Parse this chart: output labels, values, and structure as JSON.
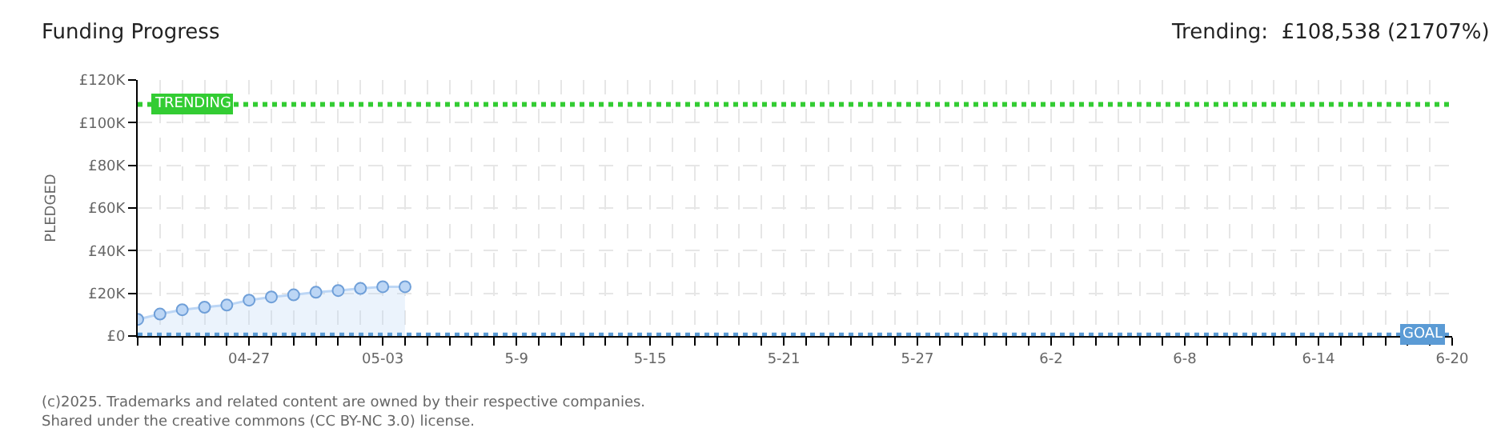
{
  "chart_data": {
    "type": "area",
    "title": "Funding Progress",
    "subtitle": "Trending:  £108,538 (21707%)",
    "ylabel": "PLEDGED",
    "x": [
      "2025-04-22",
      "2025-04-23",
      "2025-04-24",
      "2025-04-25",
      "2025-04-26",
      "2025-04-27",
      "2025-04-28",
      "2025-04-29",
      "2025-04-30",
      "2025-05-01",
      "2025-05-02",
      "2025-05-03",
      "2025-05-04"
    ],
    "series": [
      {
        "color": "#bcd6f5",
        "values": [
          7800,
          10300,
          12300,
          13500,
          14500,
          16800,
          18300,
          19300,
          20500,
          21300,
          22300,
          23100,
          23100
        ]
      }
    ],
    "marker": "circle",
    "grid": true,
    "ylim": [
      0,
      120000
    ],
    "yticks": [
      {
        "value": 0,
        "label": "£0"
      },
      {
        "value": 20000,
        "label": "£20K"
      },
      {
        "value": 40000,
        "label": "£40K"
      },
      {
        "value": 60000,
        "label": "£60K"
      },
      {
        "value": 80000,
        "label": "£80K"
      },
      {
        "value": 100000,
        "label": "£100K"
      },
      {
        "value": 120000,
        "label": "£120K"
      }
    ],
    "xlim": [
      "2025-04-22",
      "2025-06-20"
    ],
    "xticks": [
      {
        "value": "2025-04-22",
        "label": null
      },
      {
        "value": "2025-04-23",
        "label": null
      },
      {
        "value": "2025-04-24",
        "label": null
      },
      {
        "value": "2025-04-25",
        "label": null
      },
      {
        "value": "2025-04-26",
        "label": null
      },
      {
        "value": "2025-04-27",
        "label": "04-27"
      },
      {
        "value": "2025-04-28",
        "label": null
      },
      {
        "value": "2025-04-29",
        "label": null
      },
      {
        "value": "2025-04-30",
        "label": null
      },
      {
        "value": "2025-05-01",
        "label": null
      },
      {
        "value": "2025-05-02",
        "label": null
      },
      {
        "value": "2025-05-03",
        "label": "05-03"
      },
      {
        "value": "2025-05-04",
        "label": null
      },
      {
        "value": "2025-05-05",
        "label": null
      },
      {
        "value": "2025-05-06",
        "label": null
      },
      {
        "value": "2025-05-07",
        "label": null
      },
      {
        "value": "2025-05-08",
        "label": null
      },
      {
        "value": "2025-05-09",
        "label": "5-9"
      },
      {
        "value": "2025-05-10",
        "label": null
      },
      {
        "value": "2025-05-11",
        "label": null
      },
      {
        "value": "2025-05-12",
        "label": null
      },
      {
        "value": "2025-05-13",
        "label": null
      },
      {
        "value": "2025-05-14",
        "label": null
      },
      {
        "value": "2025-05-15",
        "label": "5-15"
      },
      {
        "value": "2025-05-16",
        "label": null
      },
      {
        "value": "2025-05-17",
        "label": null
      },
      {
        "value": "2025-05-18",
        "label": null
      },
      {
        "value": "2025-05-19",
        "label": null
      },
      {
        "value": "2025-05-20",
        "label": null
      },
      {
        "value": "2025-05-21",
        "label": "5-21"
      },
      {
        "value": "2025-05-22",
        "label": null
      },
      {
        "value": "2025-05-23",
        "label": null
      },
      {
        "value": "2025-05-24",
        "label": null
      },
      {
        "value": "2025-05-25",
        "label": null
      },
      {
        "value": "2025-05-26",
        "label": null
      },
      {
        "value": "2025-05-27",
        "label": "5-27"
      },
      {
        "value": "2025-05-28",
        "label": null
      },
      {
        "value": "2025-05-29",
        "label": null
      },
      {
        "value": "2025-05-30",
        "label": null
      },
      {
        "value": "2025-05-31",
        "label": null
      },
      {
        "value": "2025-06-01",
        "label": null
      },
      {
        "value": "2025-06-02",
        "label": "6-2"
      },
      {
        "value": "2025-06-03",
        "label": null
      },
      {
        "value": "2025-06-04",
        "label": null
      },
      {
        "value": "2025-06-05",
        "label": null
      },
      {
        "value": "2025-06-06",
        "label": null
      },
      {
        "value": "2025-06-07",
        "label": null
      },
      {
        "value": "2025-06-08",
        "label": "6-8"
      },
      {
        "value": "2025-06-09",
        "label": null
      },
      {
        "value": "2025-06-10",
        "label": null
      },
      {
        "value": "2025-06-11",
        "label": null
      },
      {
        "value": "2025-06-12",
        "label": null
      },
      {
        "value": "2025-06-13",
        "label": null
      },
      {
        "value": "2025-06-14",
        "label": "6-14"
      },
      {
        "value": "2025-06-15",
        "label": null
      },
      {
        "value": "2025-06-16",
        "label": null
      },
      {
        "value": "2025-06-17",
        "label": null
      },
      {
        "value": "2025-06-18",
        "label": null
      },
      {
        "value": "2025-06-19",
        "label": null
      },
      {
        "value": "2025-06-20",
        "label": "6-20"
      }
    ],
    "ref_lines": [
      {
        "axis": "y",
        "value": 108538,
        "label": "TRENDING",
        "color": "#33cc33",
        "line_style": "dotted"
      },
      {
        "axis": "y",
        "value": 500,
        "label": "GOAL",
        "color": "#5b9bd5",
        "line_style": "dotted"
      }
    ],
    "annotations": [
      "(c)2025. Trademarks and related content are owned by their respective companies.",
      "Shared under the creative commons (CC BY-NC 3.0) license."
    ]
  }
}
